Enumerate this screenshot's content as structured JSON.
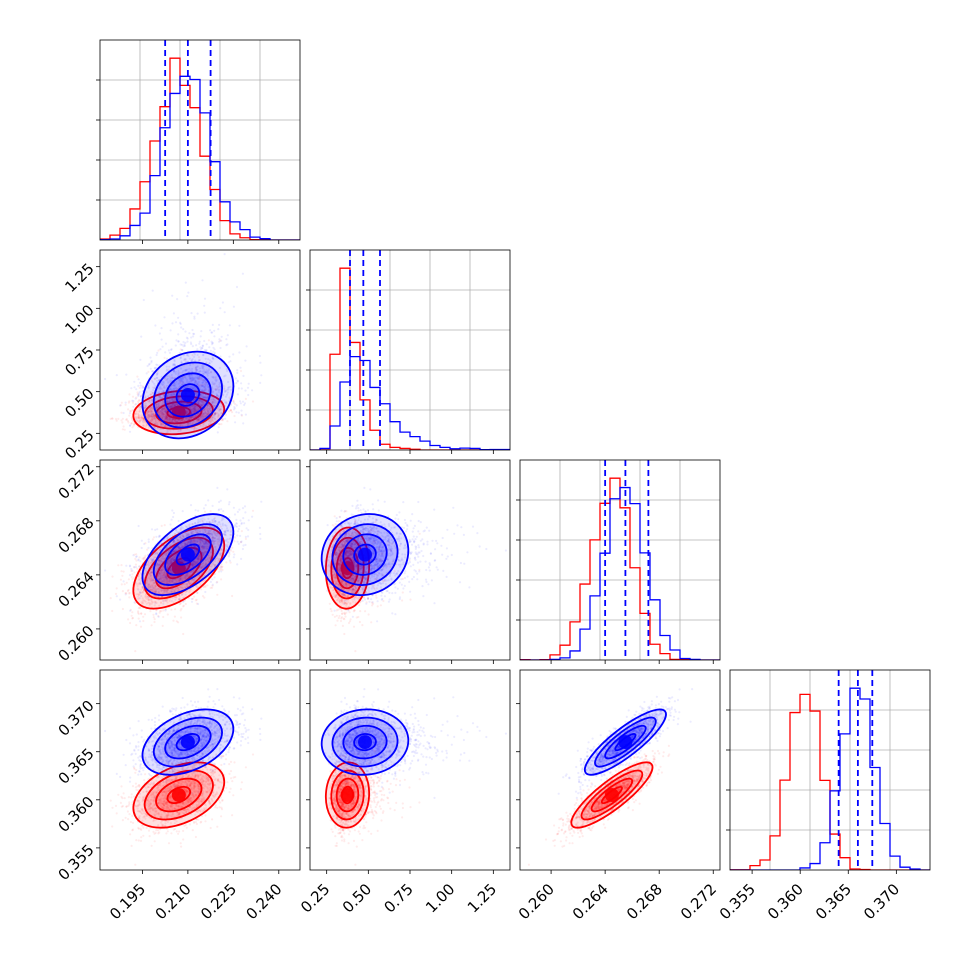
{
  "chart_data": {
    "type": "corner",
    "grid": true,
    "n_params": 4,
    "colors": {
      "red": "#ff0000",
      "blue": "#0000ff"
    },
    "series": [
      {
        "color": "red",
        "mean": [
          0.207,
          0.375,
          0.2645,
          0.3605
        ],
        "sd": [
          0.0075,
          0.065,
          0.0015,
          0.0017
        ],
        "corr": {
          "0-1": 0.15,
          "0-2": 0.55,
          "0-3": 0.4,
          "1-2": 0.05,
          "1-3": 0.05,
          "2-3": 0.85
        }
      },
      {
        "color": "blue",
        "mean": [
          0.21,
          0.48,
          0.2655,
          0.366
        ],
        "sd": [
          0.0075,
          0.13,
          0.0015,
          0.0017
        ],
        "corr": {
          "0-1": 0.2,
          "0-2": 0.55,
          "0-3": 0.4,
          "1-2": 0.1,
          "1-3": 0.05,
          "2-3": 0.85
        }
      }
    ],
    "quantiles": [
      [
        0.2025,
        0.21,
        0.2175
      ],
      [
        0.39,
        0.47,
        0.57
      ],
      [
        0.264,
        0.2655,
        0.2672
      ],
      [
        0.364,
        0.366,
        0.3675
      ]
    ],
    "ranges": [
      [
        0.181,
        0.247
      ],
      [
        0.15,
        1.35
      ],
      [
        0.2577,
        0.2725
      ],
      [
        0.3527,
        0.3735
      ]
    ],
    "axes_ticks": [
      [
        "0.195",
        "0.210",
        "0.225",
        "0.240"
      ],
      [
        "0.25",
        "0.50",
        "0.75",
        "1.00",
        "1.25"
      ],
      [
        "0.260",
        "0.264",
        "0.268",
        "0.272"
      ],
      [
        "0.355",
        "0.360",
        "0.365",
        "0.370"
      ]
    ]
  }
}
